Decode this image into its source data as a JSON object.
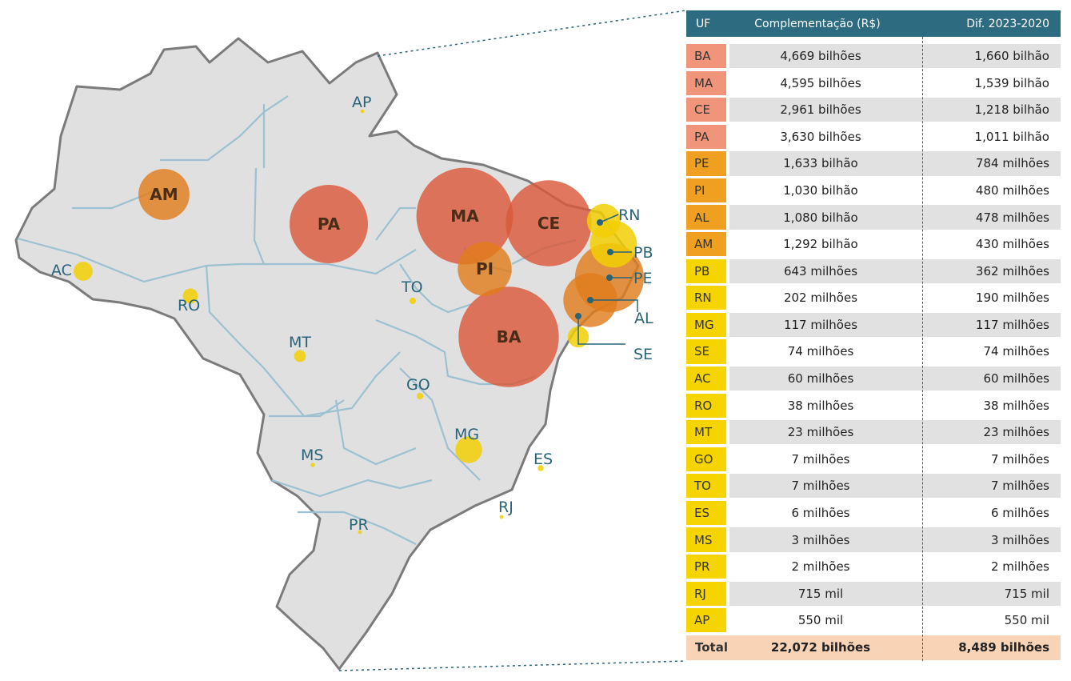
{
  "colors": {
    "tier1": "#f0957a",
    "tier2": "#f0a020",
    "tier3": "#f5d400",
    "header_bg": "#2c6b80",
    "total_bg": "#f8d3b6",
    "bubble_tier1": "#d9593a",
    "bubble_tier2": "#e07c1c",
    "bubble_small": "#f2cf05",
    "state_label": "#2a6478"
  },
  "table": {
    "headers": {
      "uf": "UF",
      "complementacao": "Complementação (R$)",
      "dif": "Dif. 2023-2020"
    },
    "rows": [
      {
        "uf": "BA",
        "complementacao": "4,669 bilhões",
        "dif": "1,660 bilhão",
        "tier": "tier1"
      },
      {
        "uf": "MA",
        "complementacao": "4,595 bilhões",
        "dif": "1,539 bilhão",
        "tier": "tier1"
      },
      {
        "uf": "CE",
        "complementacao": "2,961 bilhões",
        "dif": "1,218 bilhão",
        "tier": "tier1"
      },
      {
        "uf": "PA",
        "complementacao": "3,630 bilhões",
        "dif": "1,011 bilhão",
        "tier": "tier1"
      },
      {
        "uf": "PE",
        "complementacao": "1,633 bilhão",
        "dif": "784 milhões",
        "tier": "tier2"
      },
      {
        "uf": "PI",
        "complementacao": "1,030 bilhão",
        "dif": "480 milhões",
        "tier": "tier2"
      },
      {
        "uf": "AL",
        "complementacao": "1,080 bilhão",
        "dif": "478 milhões",
        "tier": "tier2"
      },
      {
        "uf": "AM",
        "complementacao": "1,292 bilhão",
        "dif": "430 milhões",
        "tier": "tier2"
      },
      {
        "uf": "PB",
        "complementacao": "643 milhões",
        "dif": "362 milhões",
        "tier": "tier3"
      },
      {
        "uf": "RN",
        "complementacao": "202 milhões",
        "dif": "190 milhões",
        "tier": "tier3"
      },
      {
        "uf": "MG",
        "complementacao": "117 milhões",
        "dif": "117 milhões",
        "tier": "tier3"
      },
      {
        "uf": "SE",
        "complementacao": "74 milhões",
        "dif": "74 milhões",
        "tier": "tier3"
      },
      {
        "uf": "AC",
        "complementacao": "60 milhões",
        "dif": "60 milhões",
        "tier": "tier3"
      },
      {
        "uf": "RO",
        "complementacao": "38 milhões",
        "dif": "38 milhões",
        "tier": "tier3"
      },
      {
        "uf": "MT",
        "complementacao": "23 milhões",
        "dif": "23 milhões",
        "tier": "tier3"
      },
      {
        "uf": "GO",
        "complementacao": "7 milhões",
        "dif": "7 milhões",
        "tier": "tier3"
      },
      {
        "uf": "TO",
        "complementacao": "7 milhões",
        "dif": "7 milhões",
        "tier": "tier3"
      },
      {
        "uf": "ES",
        "complementacao": "6 milhões",
        "dif": "6 milhões",
        "tier": "tier3"
      },
      {
        "uf": "MS",
        "complementacao": "3 milhões",
        "dif": "3 milhões",
        "tier": "tier3"
      },
      {
        "uf": "PR",
        "complementacao": "2 milhões",
        "dif": "2 milhões",
        "tier": "tier3"
      },
      {
        "uf": "RJ",
        "complementacao": "715 mil",
        "dif": "715 mil",
        "tier": "tier3"
      },
      {
        "uf": "AP",
        "complementacao": "550 mil",
        "dif": "550 mil",
        "tier": "tier3"
      }
    ],
    "total": {
      "label": "Total",
      "complementacao": "22,072 bilhões",
      "dif": "8,489 bilhões"
    }
  },
  "map": {
    "bubbles": [
      {
        "uf": "BA",
        "label": "BA",
        "dif_millions": 1660,
        "tier": "tier1"
      },
      {
        "uf": "MA",
        "label": "MA",
        "dif_millions": 1539,
        "tier": "tier1"
      },
      {
        "uf": "CE",
        "label": "CE",
        "dif_millions": 1218,
        "tier": "tier1"
      },
      {
        "uf": "PA",
        "label": "PA",
        "dif_millions": 1011,
        "tier": "tier1"
      },
      {
        "uf": "PE",
        "label": "",
        "dif_millions": 784,
        "tier": "tier2"
      },
      {
        "uf": "PI",
        "label": "PI",
        "dif_millions": 480,
        "tier": "tier2"
      },
      {
        "uf": "AL",
        "label": "",
        "dif_millions": 478,
        "tier": "tier2"
      },
      {
        "uf": "AM",
        "label": "AM",
        "dif_millions": 430,
        "tier": "tier2"
      },
      {
        "uf": "PB",
        "label": "",
        "dif_millions": 362,
        "tier": "small"
      },
      {
        "uf": "RN",
        "label": "",
        "dif_millions": 190,
        "tier": "small"
      },
      {
        "uf": "MG",
        "label": "",
        "dif_millions": 117,
        "tier": "small"
      },
      {
        "uf": "SE",
        "label": "",
        "dif_millions": 74,
        "tier": "small"
      },
      {
        "uf": "AC",
        "label": "",
        "dif_millions": 60,
        "tier": "small"
      },
      {
        "uf": "RO",
        "label": "",
        "dif_millions": 38,
        "tier": "small"
      },
      {
        "uf": "MT",
        "label": "",
        "dif_millions": 23,
        "tier": "small"
      },
      {
        "uf": "GO",
        "label": "",
        "dif_millions": 7,
        "tier": "small"
      },
      {
        "uf": "TO",
        "label": "",
        "dif_millions": 7,
        "tier": "small"
      },
      {
        "uf": "ES",
        "label": "",
        "dif_millions": 6,
        "tier": "small"
      },
      {
        "uf": "MS",
        "label": "",
        "dif_millions": 3,
        "tier": "small"
      },
      {
        "uf": "PR",
        "label": "",
        "dif_millions": 2,
        "tier": "small"
      },
      {
        "uf": "RJ",
        "label": "",
        "dif_millions": 0.715,
        "tier": "small"
      },
      {
        "uf": "AP",
        "label": "",
        "dif_millions": 0.55,
        "tier": "small"
      }
    ],
    "state_labels": [
      "AP",
      "AC",
      "RO",
      "MT",
      "TO",
      "GO",
      "MS",
      "MG",
      "PR",
      "ES",
      "RJ",
      "RN",
      "PB",
      "PE",
      "AL",
      "SE"
    ]
  }
}
